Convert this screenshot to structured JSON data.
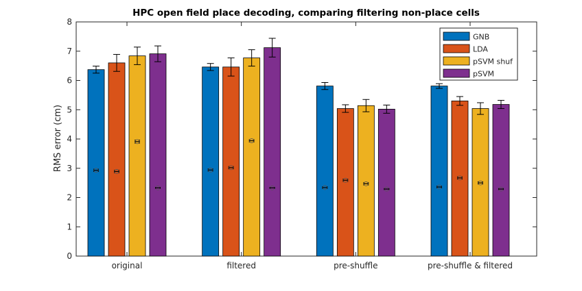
{
  "chart_data": {
    "type": "bar",
    "title": "HPC open field place decoding, comparing filtering non-place cells",
    "xlabel": "",
    "ylabel": "RMS error (cm)",
    "ylim": [
      0,
      8
    ],
    "yticks": [
      "0",
      "1",
      "2",
      "3",
      "4",
      "5",
      "6",
      "7",
      "8"
    ],
    "categories": [
      "original",
      "filtered",
      "pre-shuffle",
      "pre-shuffle & filtered"
    ],
    "legend_position": "top-right",
    "grid": false,
    "series": [
      {
        "name": "GNB",
        "color": "#0072bd",
        "values": [
          6.37,
          6.46,
          5.81,
          5.81
        ],
        "errors": [
          0.12,
          0.12,
          0.12,
          0.08
        ],
        "shuffle_values": [
          2.93,
          2.94,
          2.34,
          2.36
        ],
        "shuffle_errors": [
          0.04,
          0.04,
          0.03,
          0.03
        ]
      },
      {
        "name": "LDA",
        "color": "#d95319",
        "values": [
          6.6,
          6.46,
          5.04,
          5.3
        ],
        "errors": [
          0.29,
          0.31,
          0.13,
          0.15
        ],
        "shuffle_values": [
          2.89,
          3.02,
          2.59,
          2.67
        ],
        "shuffle_errors": [
          0.04,
          0.04,
          0.04,
          0.04
        ]
      },
      {
        "name": "pSVM shuf",
        "color": "#edb120",
        "values": [
          6.84,
          6.77,
          5.14,
          5.04
        ],
        "errors": [
          0.3,
          0.28,
          0.21,
          0.2
        ],
        "shuffle_values": [
          3.91,
          3.94,
          2.47,
          2.5
        ],
        "shuffle_errors": [
          0.05,
          0.04,
          0.04,
          0.04
        ]
      },
      {
        "name": "pSVM",
        "color": "#7e2f8e",
        "values": [
          6.91,
          7.12,
          5.02,
          5.18
        ],
        "errors": [
          0.27,
          0.32,
          0.14,
          0.14
        ],
        "shuffle_values": [
          2.33,
          2.33,
          2.29,
          2.29
        ],
        "shuffle_errors": [
          0.02,
          0.02,
          0.02,
          0.02
        ]
      }
    ]
  }
}
